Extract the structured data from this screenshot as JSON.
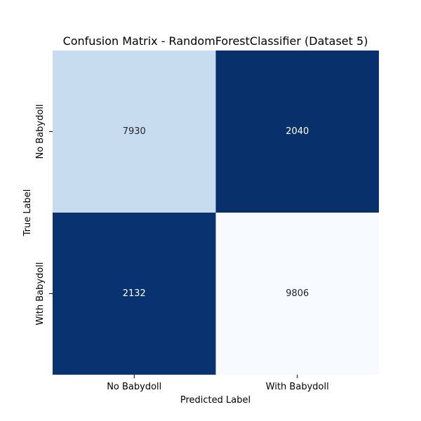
{
  "chart_data": {
    "type": "heatmap",
    "title": "Confusion Matrix - RandomForestClassifier (Dataset 5)",
    "xlabel": "Predicted Label",
    "ylabel": "True Label",
    "x_categories": [
      "No Babydoll",
      "With Babydoll"
    ],
    "y_categories": [
      "No Babydoll",
      "With Babydoll"
    ],
    "values": [
      [
        7930,
        2040
      ],
      [
        2132,
        9806
      ]
    ],
    "colormap": "Blues",
    "color_range": [
      2040,
      9806
    ],
    "grid": false,
    "colorbar": false
  },
  "colors": {
    "dark_cell": "#08306b",
    "light_cell": "#f7fbff",
    "text_on_light": "#262626",
    "text_on_dark": "#ffffff"
  }
}
